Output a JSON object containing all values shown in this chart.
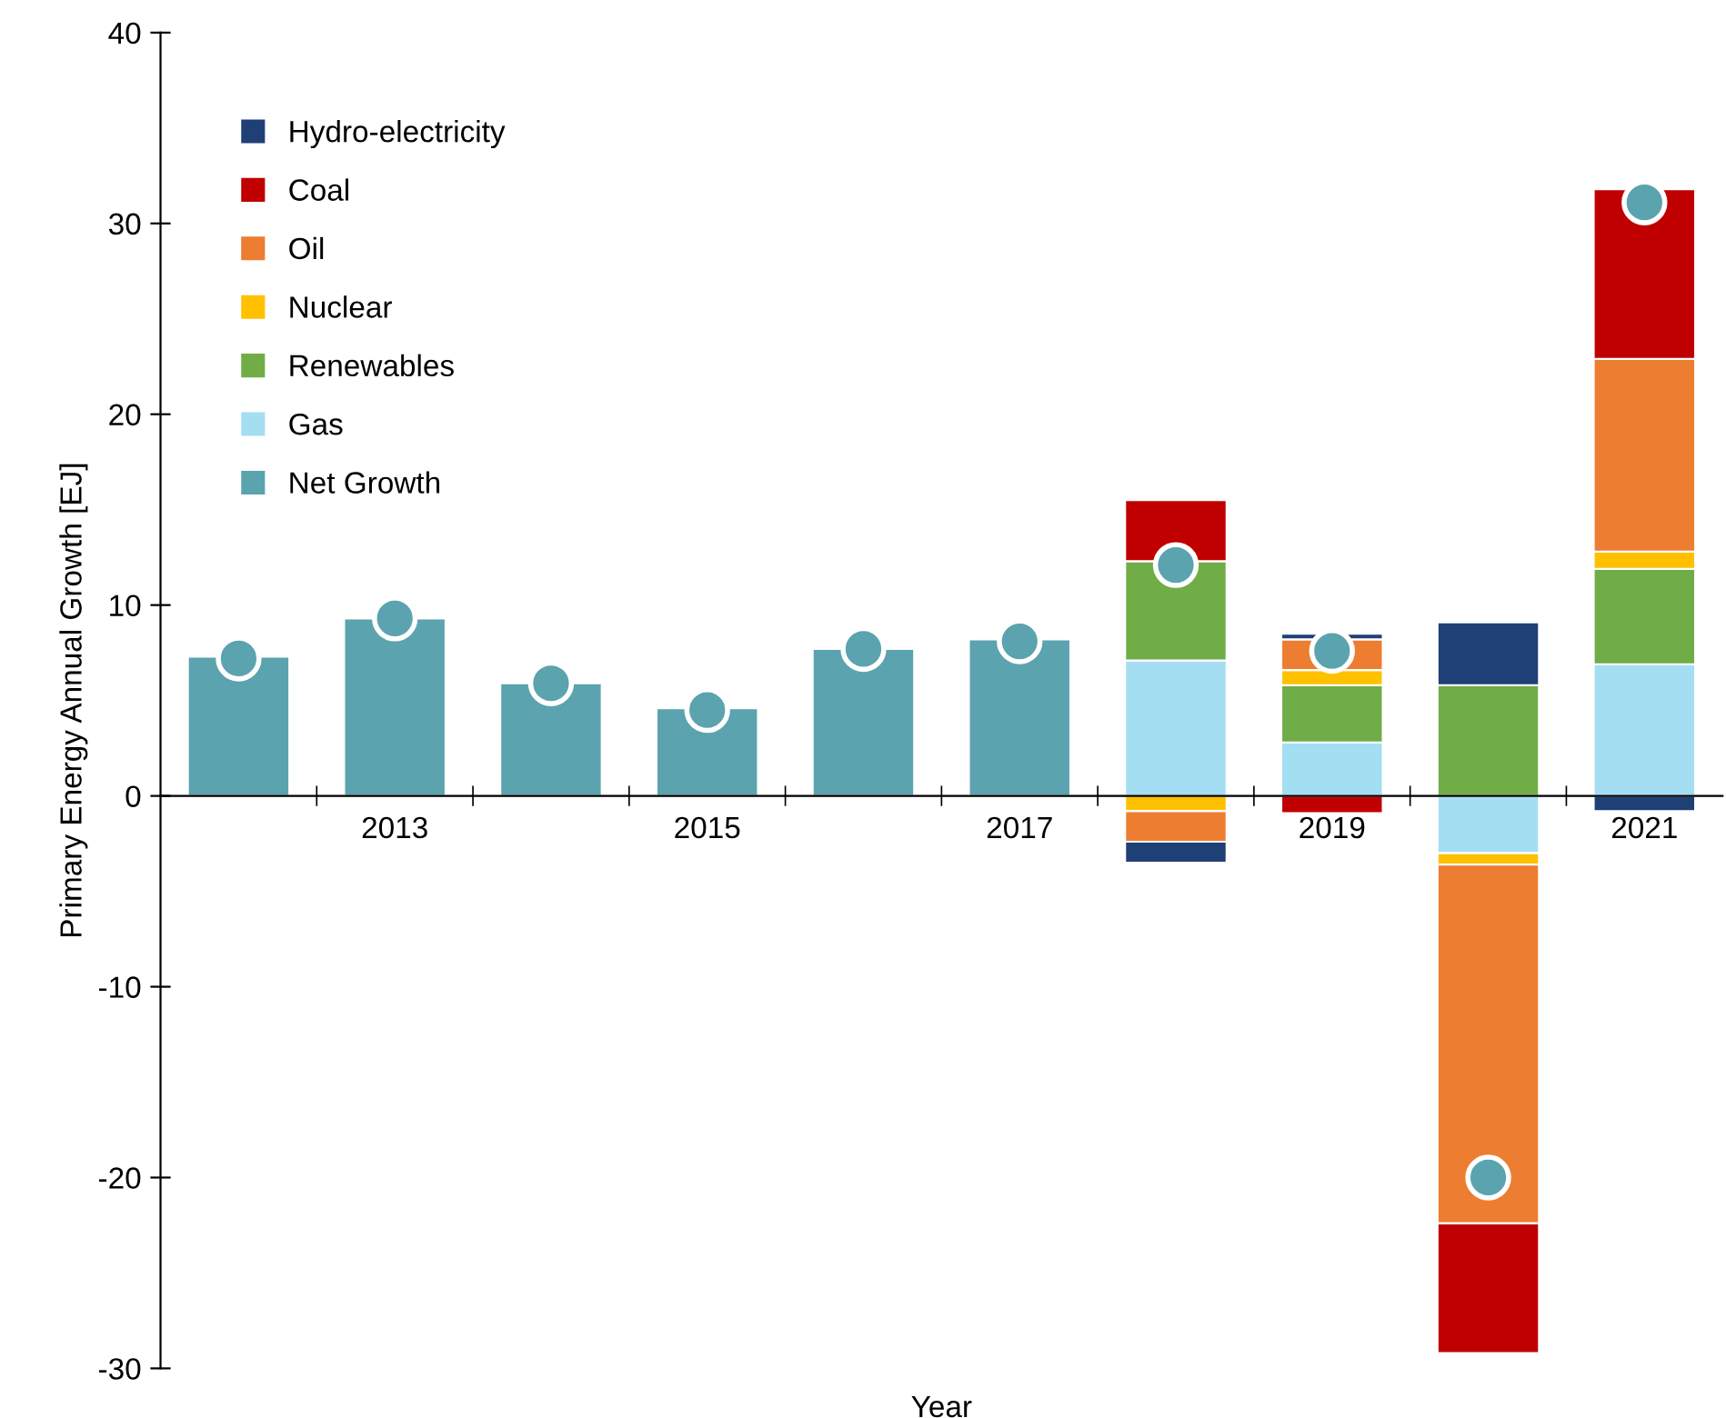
{
  "chart_data": {
    "type": "bar",
    "stacked": true,
    "xlabel": "Year",
    "ylabel": "Primary Energy Annual Growth [EJ]",
    "categories": [
      null,
      "2013",
      null,
      "2015",
      null,
      "2017",
      null,
      "2019",
      null,
      "2021"
    ],
    "ylim": [
      -30,
      40
    ],
    "yticks": [
      -30,
      -20,
      -10,
      0,
      10,
      20,
      30,
      40
    ],
    "grid": false,
    "legend": "top left",
    "series": [
      {
        "name": "Net Growth",
        "color": "#5ba3ae",
        "values": [
          7.3,
          9.3,
          5.9,
          4.6,
          7.7,
          8.2,
          null,
          null,
          null,
          null
        ]
      },
      {
        "name": "Gas",
        "color": "#a4def2",
        "values": [
          null,
          null,
          null,
          null,
          null,
          null,
          7.1,
          2.8,
          -3.0,
          6.9
        ]
      },
      {
        "name": "Renewables",
        "color": "#70ad47",
        "values": [
          null,
          null,
          null,
          null,
          null,
          null,
          5.2,
          3.0,
          5.8,
          5.0
        ]
      },
      {
        "name": "Nuclear",
        "color": "#ffc000",
        "values": [
          null,
          null,
          null,
          null,
          null,
          null,
          -0.8,
          0.8,
          -0.6,
          0.9
        ]
      },
      {
        "name": "Oil",
        "color": "#ed7d31",
        "values": [
          null,
          null,
          null,
          null,
          null,
          null,
          -1.6,
          1.6,
          -18.8,
          10.1
        ]
      },
      {
        "name": "Coal",
        "color": "#c00000",
        "values": [
          null,
          null,
          null,
          null,
          null,
          null,
          3.2,
          -0.9,
          -6.8,
          8.9
        ]
      },
      {
        "name": "Hydro-electricity",
        "color": "#1f3f77",
        "values": [
          null,
          null,
          null,
          null,
          null,
          null,
          -1.1,
          0.3,
          3.3,
          -0.8
        ]
      },
      {
        "type": "scatter",
        "color": "#5ba3ae",
        "marker": "circle",
        "values": [
          7.2,
          9.3,
          5.9,
          4.5,
          7.7,
          8.1,
          12.1,
          7.6,
          -20.0,
          31.1
        ]
      }
    ]
  }
}
